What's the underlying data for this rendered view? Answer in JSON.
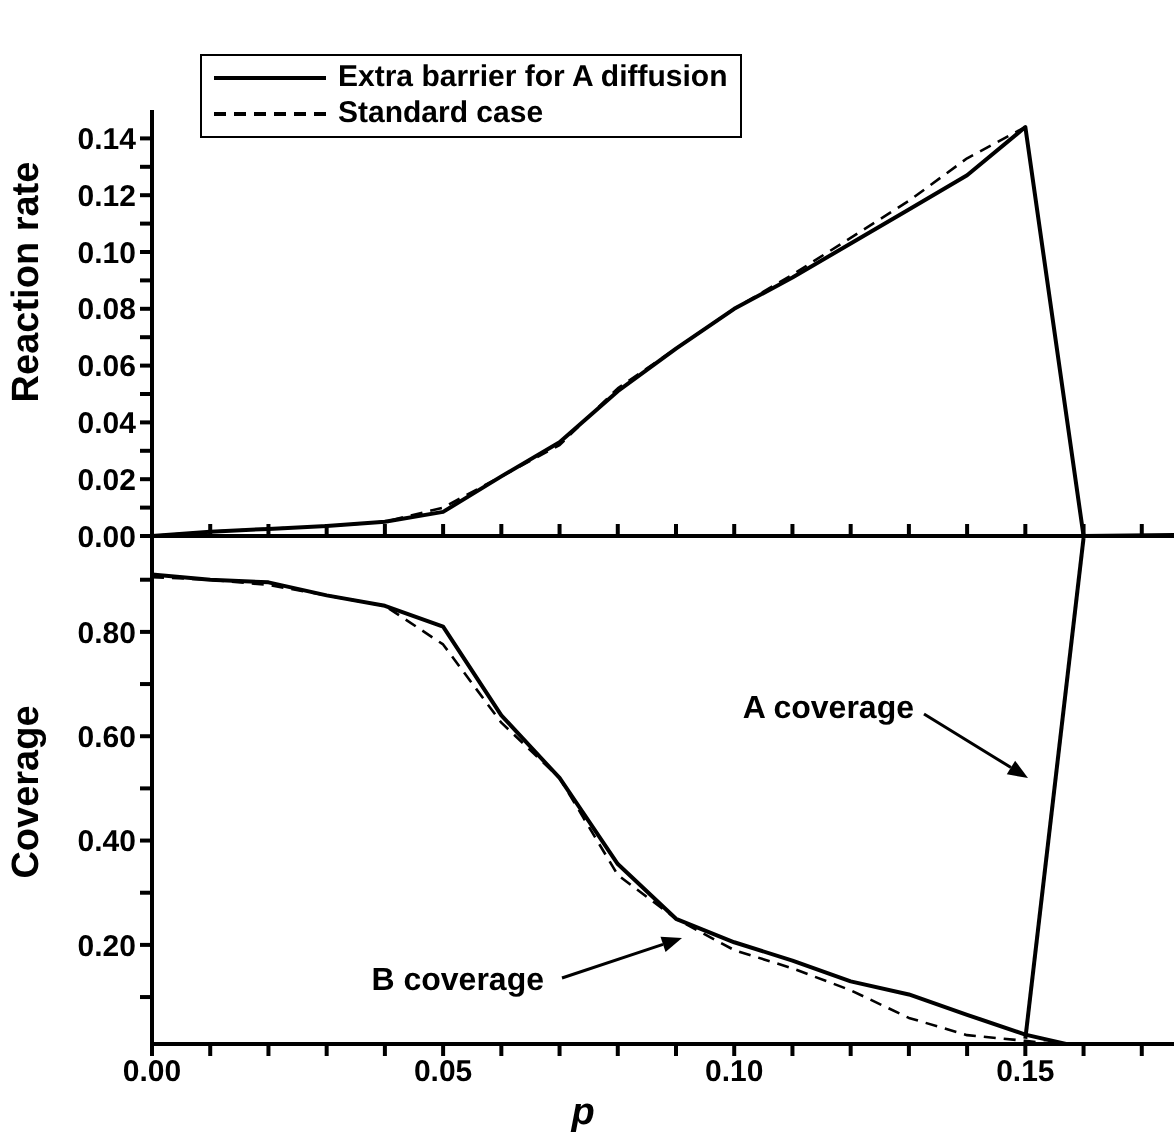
{
  "chart_data": [
    {
      "type": "line",
      "ylabel": "Reaction rate",
      "xlim": [
        0,
        0.18
      ],
      "ylim": [
        0,
        0.15
      ],
      "xticks": [
        {
          "value": 0.01,
          "label": null
        },
        {
          "value": 0.02,
          "label": null
        },
        {
          "value": 0.03,
          "label": null
        },
        {
          "value": 0.04,
          "label": null
        },
        {
          "value": 0.05,
          "label": null
        },
        {
          "value": 0.06,
          "label": null
        },
        {
          "value": 0.07,
          "label": null
        },
        {
          "value": 0.08,
          "label": null
        },
        {
          "value": 0.09,
          "label": null
        },
        {
          "value": 0.1,
          "label": null
        },
        {
          "value": 0.11,
          "label": null
        },
        {
          "value": 0.12,
          "label": null
        },
        {
          "value": 0.13,
          "label": null
        },
        {
          "value": 0.14,
          "label": null
        },
        {
          "value": 0.15,
          "label": null
        },
        {
          "value": 0.16,
          "label": null
        },
        {
          "value": 0.17,
          "label": null
        }
      ],
      "yticks": [
        {
          "value": 0,
          "label": "0.00"
        },
        {
          "value": 0.01,
          "label": null
        },
        {
          "value": 0.02,
          "label": "0.02"
        },
        {
          "value": 0.03,
          "label": null
        },
        {
          "value": 0.04,
          "label": "0.04"
        },
        {
          "value": 0.05,
          "label": null
        },
        {
          "value": 0.06,
          "label": "0.06"
        },
        {
          "value": 0.07,
          "label": null
        },
        {
          "value": 0.08,
          "label": "0.08"
        },
        {
          "value": 0.09,
          "label": null
        },
        {
          "value": 0.1,
          "label": "0.10"
        },
        {
          "value": 0.11,
          "label": null
        },
        {
          "value": 0.12,
          "label": "0.12"
        },
        {
          "value": 0.13,
          "label": null
        },
        {
          "value": 0.14,
          "label": "0.14"
        }
      ],
      "tick_labels": "y",
      "legend": "top left",
      "grid": false,
      "marker": "none",
      "series": [
        {
          "name": "Extra barrier for A diffusion",
          "color": "#000000",
          "line_style": "solid",
          "x": [
            0,
            0.01,
            0.02,
            0.03,
            0.04,
            0.05,
            0.06,
            0.07,
            0.08,
            0.09,
            0.1,
            0.11,
            0.12,
            0.13,
            0.14,
            0.15,
            0.16,
            0.18
          ],
          "values": [
            0,
            0.0015,
            0.0025,
            0.0035,
            0.005,
            0.0085,
            0.021,
            0.033,
            0.051,
            0.066,
            0.08,
            0.091,
            0.103,
            0.115,
            0.127,
            0.144,
            0,
            0.0005
          ]
        },
        {
          "name": "Standard case",
          "color": "#000000",
          "line_style": "dashed",
          "x": [
            0,
            0.01,
            0.02,
            0.03,
            0.04,
            0.05,
            0.06,
            0.07,
            0.08,
            0.09,
            0.1,
            0.11,
            0.12,
            0.13,
            0.14,
            0.15
          ],
          "values": [
            0,
            0.0015,
            0.0025,
            0.0035,
            0.005,
            0.01,
            0.021,
            0.032,
            0.052,
            0.066,
            0.08,
            0.092,
            0.105,
            0.118,
            0.133,
            0.144
          ]
        }
      ]
    },
    {
      "type": "line",
      "xlabel": "p",
      "ylabel": "Coverage",
      "xlim": [
        0,
        0.18
      ],
      "ylim": [
        0.01,
        0.98
      ],
      "xticks": [
        {
          "value": 0,
          "label": "0.00"
        },
        {
          "value": 0.01,
          "label": null
        },
        {
          "value": 0.02,
          "label": null
        },
        {
          "value": 0.03,
          "label": null
        },
        {
          "value": 0.04,
          "label": null
        },
        {
          "value": 0.05,
          "label": "0.05"
        },
        {
          "value": 0.06,
          "label": null
        },
        {
          "value": 0.07,
          "label": null
        },
        {
          "value": 0.08,
          "label": null
        },
        {
          "value": 0.09,
          "label": null
        },
        {
          "value": 0.1,
          "label": "0.10"
        },
        {
          "value": 0.11,
          "label": null
        },
        {
          "value": 0.12,
          "label": null
        },
        {
          "value": 0.13,
          "label": null
        },
        {
          "value": 0.14,
          "label": null
        },
        {
          "value": 0.15,
          "label": "0.15"
        },
        {
          "value": 0.16,
          "label": null
        },
        {
          "value": 0.17,
          "label": null
        }
      ],
      "yticks": [
        {
          "value": 0.1,
          "label": null
        },
        {
          "value": 0.2,
          "label": "0.20"
        },
        {
          "value": 0.3,
          "label": null
        },
        {
          "value": 0.4,
          "label": "0.40"
        },
        {
          "value": 0.5,
          "label": null
        },
        {
          "value": 0.6,
          "label": "0.60"
        },
        {
          "value": 0.7,
          "label": null
        },
        {
          "value": 0.8,
          "label": "0.80"
        },
        {
          "value": 0.9,
          "label": null
        }
      ],
      "grid": false,
      "marker": "none",
      "annotations": [
        "A coverage",
        "B coverage"
      ],
      "series": [
        {
          "color": "#000000",
          "line_style": "solid",
          "x": [
            0,
            0.01,
            0.02,
            0.03,
            0.04,
            0.05,
            0.06,
            0.07,
            0.08,
            0.09,
            0.1,
            0.11,
            0.12,
            0.13,
            0.14,
            0.15,
            0.157
          ],
          "values": [
            0.91,
            0.9,
            0.895,
            0.87,
            0.85,
            0.81,
            0.64,
            0.52,
            0.355,
            0.25,
            0.205,
            0.17,
            0.13,
            0.105,
            0.066,
            0.028,
            0.01
          ]
        },
        {
          "color": "#000000",
          "line_style": "dashed",
          "x": [
            0,
            0.01,
            0.02,
            0.03,
            0.04,
            0.05,
            0.06,
            0.07,
            0.08,
            0.09,
            0.1,
            0.11,
            0.12,
            0.13,
            0.14,
            0.15,
            0.155
          ],
          "values": [
            0.905,
            0.9,
            0.89,
            0.87,
            0.85,
            0.776,
            0.626,
            0.52,
            0.334,
            0.25,
            0.19,
            0.155,
            0.113,
            0.06,
            0.027,
            0.016,
            0.01
          ]
        },
        {
          "color": "#000000",
          "line_style": "solid",
          "x": [
            0.15,
            0.16
          ],
          "values": [
            0.02,
            0.98
          ]
        }
      ]
    }
  ]
}
